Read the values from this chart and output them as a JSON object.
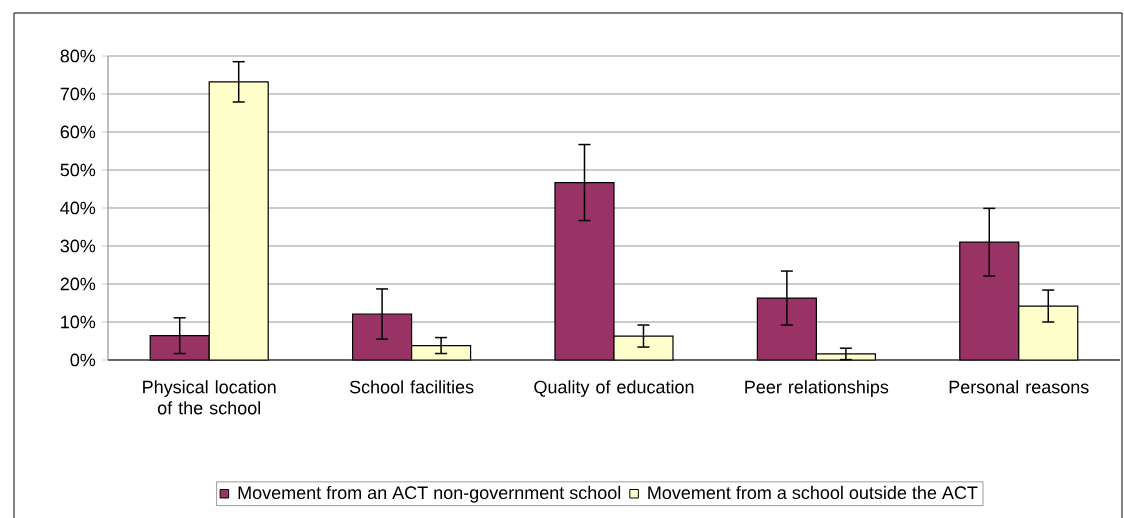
{
  "chart_data": {
    "type": "bar",
    "categories": [
      "Physical location of the school",
      "School facilities",
      "Quality of education",
      "Peer relationships",
      "Personal reasons"
    ],
    "series": [
      {
        "name": "Movement from an ACT non-government school",
        "color": "#993366",
        "values": [
          6.4,
          12.1,
          46.7,
          16.3,
          31.0
        ],
        "errors": [
          4.7,
          6.6,
          10.0,
          7.1,
          8.9
        ]
      },
      {
        "name": "Movement from a school outside the ACT",
        "color": "#ffffcc",
        "values": [
          73.2,
          3.8,
          6.3,
          1.6,
          14.2
        ],
        "errors": [
          5.3,
          2.1,
          2.9,
          1.5,
          4.2
        ]
      }
    ],
    "ylim": [
      0,
      80
    ],
    "yticks": [
      {
        "value": 0,
        "label": "0%"
      },
      {
        "value": 10,
        "label": "10%"
      },
      {
        "value": 20,
        "label": "20%"
      },
      {
        "value": 30,
        "label": "30%"
      },
      {
        "value": 40,
        "label": "40%"
      },
      {
        "value": 50,
        "label": "50%"
      },
      {
        "value": 60,
        "label": "60%"
      },
      {
        "value": 70,
        "label": "70%"
      },
      {
        "value": 80,
        "label": "80%"
      }
    ],
    "grid": "y",
    "legend": "bottom"
  }
}
